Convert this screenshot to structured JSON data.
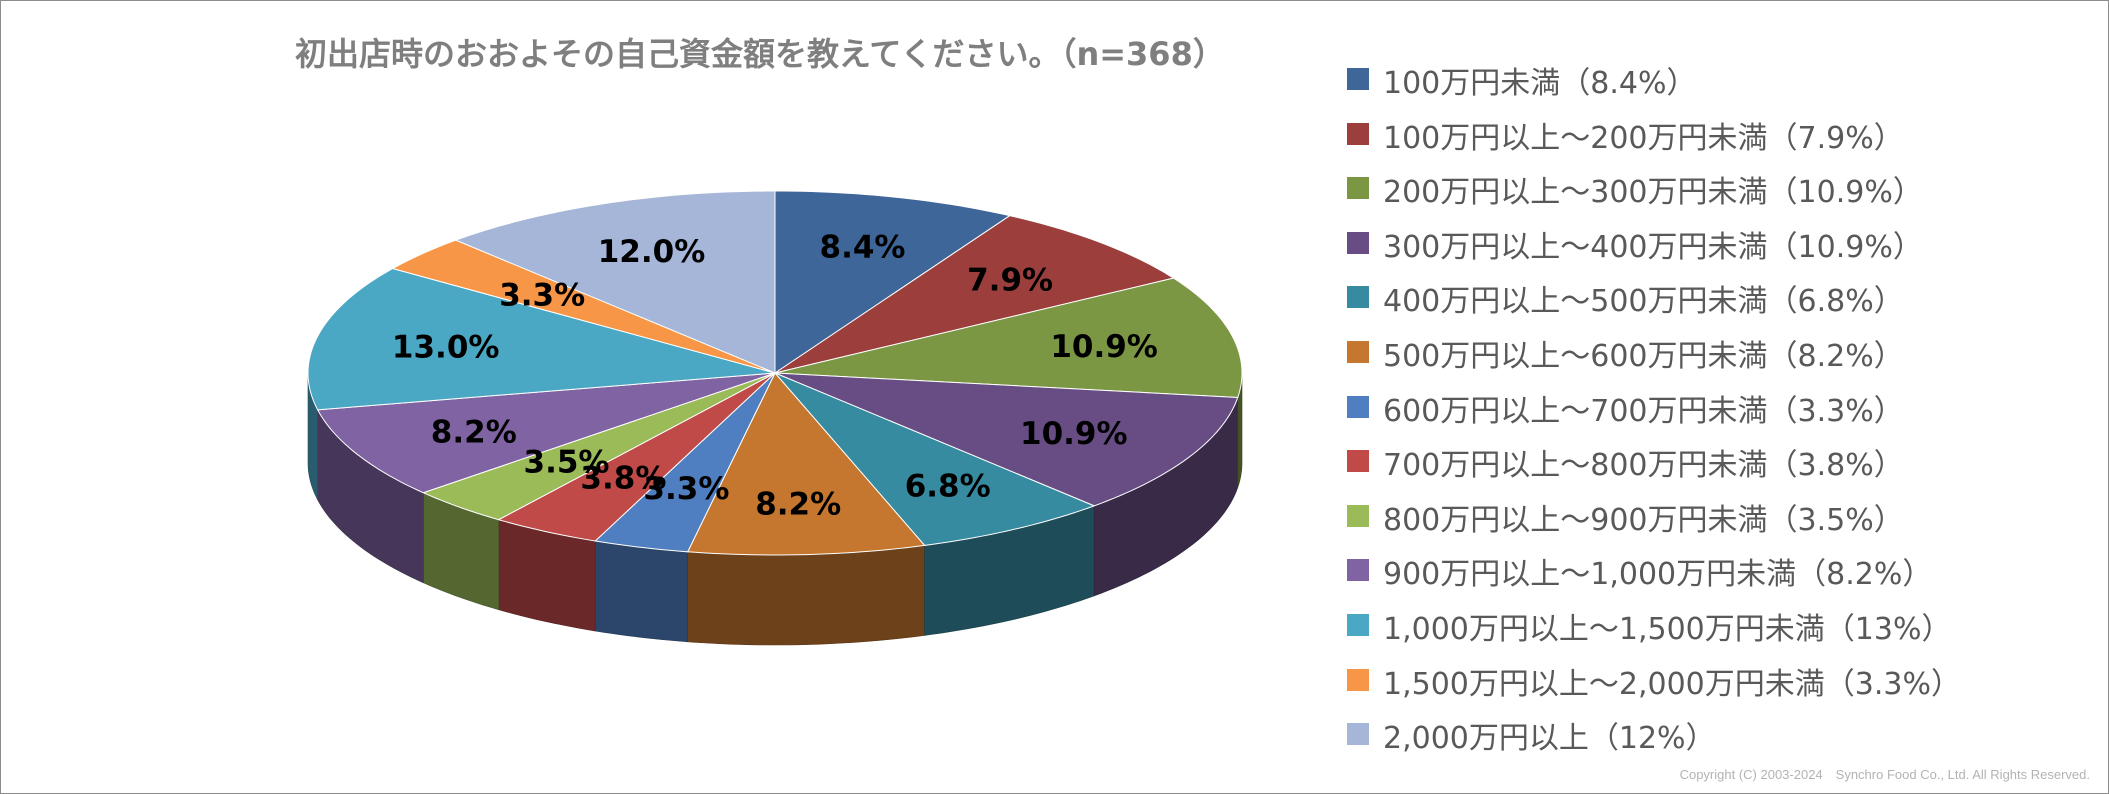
{
  "chart_data": {
    "type": "pie",
    "title": "初出店時のおおよその自己資金額を教えてください。（n=368）",
    "labels": [
      "8.4%",
      "7.9%",
      "10.9%",
      "10.9%",
      "6.8%",
      "8.2%",
      "3.3%",
      "3.8%",
      "3.5%",
      "8.2%",
      "13.0%",
      "3.3%",
      "12.0%"
    ],
    "values": [
      8.4,
      7.9,
      10.9,
      10.9,
      6.8,
      8.2,
      3.3,
      3.8,
      3.5,
      8.2,
      13.0,
      3.3,
      12.0
    ],
    "legend": [
      "100万円未満（8.4%）",
      "100万円以上～200万円未満（7.9%）",
      "200万円以上～300万円未満（10.9%）",
      "300万円以上～400万円未満（10.9%）",
      "400万円以上～500万円未満（6.8%）",
      "500万円以上～600万円未満（8.2%）",
      "600万円以上～700万円未満（3.3%）",
      "700万円以上～800万円未満（3.8%）",
      "800万円以上～900万円未満（3.5%）",
      "900万円以上～1,000万円未満（8.2%）",
      "1,000万円以上～1,500万円未満（13%）",
      "1,500万円以上～2,000万円未満（3.3%）",
      "2,000万円以上（12%）"
    ],
    "colors": [
      "#3e6699",
      "#9c3f3c",
      "#7b9744",
      "#674d83",
      "#378ba0",
      "#c6772f",
      "#4f7fc0",
      "#c04a48",
      "#9bbb59",
      "#7f63a2",
      "#4aa8c4",
      "#f79646",
      "#a6b6d8"
    ],
    "legend_position": "right",
    "style": "3d"
  },
  "copyright": "Copyright (C) 2003-2024　Synchro Food Co., Ltd. All Rights Reserved."
}
